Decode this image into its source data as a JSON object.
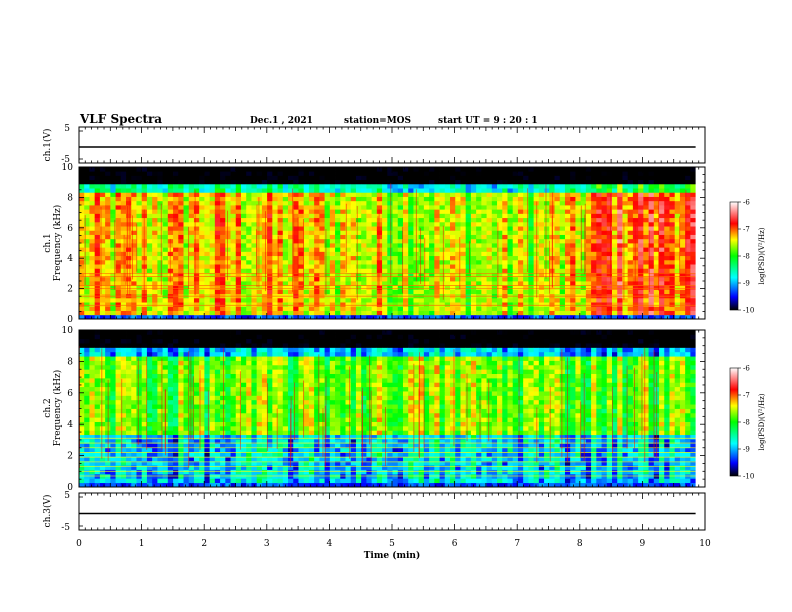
{
  "header": {
    "title": "VLF Spectra",
    "date": "Dec.1 , 2021",
    "station": "station=MOS",
    "start": "start UT =  9 : 20 : 1"
  },
  "chart_data": [
    {
      "type": "line",
      "id": "ch1-waveform",
      "ylabel": "ch.1(V)",
      "yticks": [
        "5",
        "-5"
      ],
      "ylim": [
        -5,
        5
      ],
      "xlim": [
        0,
        10
      ],
      "series": [
        {
          "x": [
            0,
            9.85
          ],
          "y": [
            0,
            0
          ]
        }
      ]
    },
    {
      "type": "heatmap",
      "id": "ch1-spectrogram",
      "ylabel_lines": [
        "ch.1",
        "Frequency (kHz)"
      ],
      "yticks": [
        "0",
        "2",
        "4",
        "6",
        "8",
        "10"
      ],
      "ylim": [
        0,
        10
      ],
      "xlim": [
        0,
        10
      ],
      "data_end_min": 9.85,
      "colorbar": {
        "label": "log(PSD)(V²/Hz)",
        "ticks": [
          "-6",
          "-7",
          "-8",
          "-9",
          "-10"
        ],
        "range": [
          -10,
          -6
        ]
      },
      "time_profile_min": [
        0,
        1,
        2,
        3,
        4,
        5,
        6,
        7,
        8,
        8.4,
        9,
        9.85
      ],
      "level_profile": [
        -7.4,
        -7.4,
        -7.3,
        -7.3,
        -7.4,
        -7.5,
        -7.6,
        -7.6,
        -7.5,
        -6.9,
        -6.9,
        -6.9
      ],
      "band_top_khz": 8.9,
      "lines_khz": [
        0.9,
        1.5,
        2.0,
        2.2,
        2.8,
        3.0
      ]
    },
    {
      "type": "heatmap",
      "id": "ch2-spectrogram",
      "ylabel_lines": [
        "ch.2",
        "Frequency (kHz)"
      ],
      "yticks": [
        "0",
        "2",
        "4",
        "6",
        "8",
        "10"
      ],
      "ylim": [
        0,
        10
      ],
      "xlim": [
        0,
        10
      ],
      "data_end_min": 9.85,
      "colorbar": {
        "label": "log(PSD)(V²/Hz)",
        "ticks": [
          "-6",
          "-7",
          "-8",
          "-9",
          "-10"
        ],
        "range": [
          -10,
          -6
        ]
      },
      "time_profile_min": [
        0,
        1,
        2,
        3,
        4,
        5,
        6,
        7,
        8,
        9,
        9.85
      ],
      "level_profile": [
        -7.8,
        -7.8,
        -7.9,
        -7.8,
        -7.8,
        -7.7,
        -7.7,
        -7.8,
        -7.8,
        -7.8,
        -7.8
      ],
      "band_top_khz": 8.8,
      "lines_khz": [
        0.7,
        1.0,
        1.3,
        1.6,
        1.9,
        2.2,
        2.5,
        2.8,
        3.1
      ]
    },
    {
      "type": "line",
      "id": "ch3-waveform",
      "ylabel": "ch.3(V)",
      "yticks": [
        "5",
        "-5"
      ],
      "ylim": [
        -5,
        5
      ],
      "xlim": [
        0,
        10
      ],
      "series": [
        {
          "x": [
            0,
            9.85
          ],
          "y": [
            0,
            0
          ]
        }
      ]
    }
  ],
  "xaxis": {
    "label": "Time (min)",
    "ticks": [
      "0",
      "1",
      "2",
      "3",
      "4",
      "5",
      "6",
      "7",
      "8",
      "9",
      "10"
    ]
  },
  "colors": {
    "colormap": [
      "#000000",
      "#0000ff",
      "#00ffff",
      "#00ff00",
      "#ffff00",
      "#ff0000",
      "#ffffff"
    ]
  }
}
